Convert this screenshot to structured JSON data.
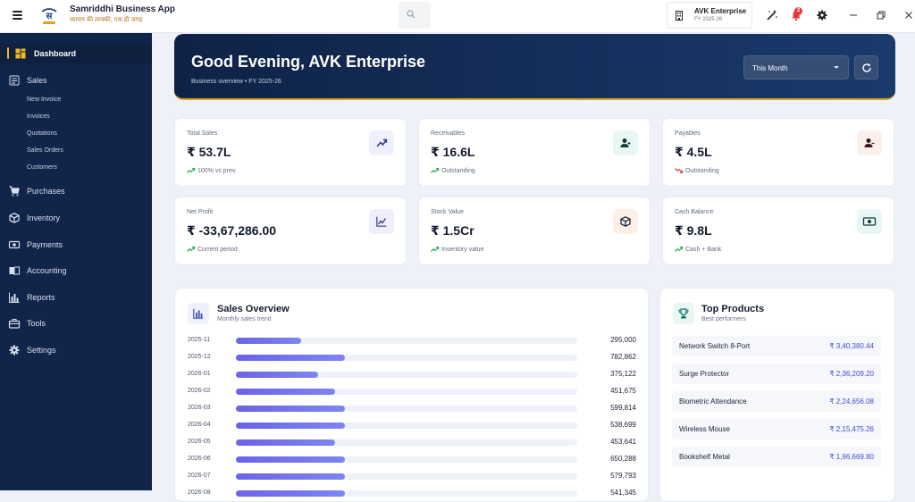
{
  "app": {
    "title": "Samriddhi Business App",
    "tagline": "व्यापार की तरक्की, एक ही जगह"
  },
  "company": {
    "name": "AVK Enterprise",
    "fy": "FY 2025-26"
  },
  "notifications": {
    "count": "2"
  },
  "sidebar": {
    "items": [
      {
        "label": "Dashboard",
        "icon": "dashboard-icon",
        "active": true
      },
      {
        "label": "Sales",
        "icon": "sales-icon"
      },
      {
        "label": "Purchases",
        "icon": "cart-icon"
      },
      {
        "label": "Inventory",
        "icon": "box-icon"
      },
      {
        "label": "Payments",
        "icon": "money-icon"
      },
      {
        "label": "Accounting",
        "icon": "book-icon"
      },
      {
        "label": "Reports",
        "icon": "bar-chart-icon"
      },
      {
        "label": "Tools",
        "icon": "toolbox-icon"
      },
      {
        "label": "Settings",
        "icon": "gear-icon"
      }
    ],
    "sales_sub": [
      "New Invoice",
      "Invoices",
      "Quotations",
      "Sales Orders",
      "Customers"
    ]
  },
  "hero": {
    "greeting": "Good Evening, AVK Enterprise",
    "overview": "Business overview • FY 2025-26",
    "period": "This Month"
  },
  "stats": [
    {
      "label": "Total Sales",
      "value": "₹ 53.7L",
      "sub": "100% vs prev.",
      "trend": "up",
      "icon_color": "#3f51b5",
      "icon_bg": "#eef0fb"
    },
    {
      "label": "Receivables",
      "value": "₹ 16.6L",
      "sub": "Outstanding",
      "trend": "up",
      "icon_color": "#0f766e",
      "icon_bg": "#e9f7f4"
    },
    {
      "label": "Payables",
      "value": "₹ 4.5L",
      "sub": "Outstanding",
      "trend": "down",
      "icon_color": "#b91c1c",
      "icon_bg": "#fdeeee"
    },
    {
      "label": "Net Profit",
      "value": "₹ -33,67,286.00",
      "sub": "Current period",
      "trend": "up",
      "icon_color": "#4f46e5",
      "icon_bg": "#efeefc"
    },
    {
      "label": "Stock Value",
      "value": "₹ 1.5Cr",
      "sub": "Inventory value",
      "trend": "up",
      "icon_color": "#1e293b",
      "icon_bg": "#fdf1e7"
    },
    {
      "label": "Cash Balance",
      "value": "₹ 9.8L",
      "sub": "Cash + Bank",
      "trend": "up",
      "icon_color": "#0f766e",
      "icon_bg": "#e9f6f6"
    }
  ],
  "sales_overview": {
    "title": "Sales Overview",
    "subtitle": "Monthly sales trend",
    "rows": [
      {
        "month": "2025-11",
        "value": "295,000",
        "fill": 0.19
      },
      {
        "month": "2025-12",
        "value": "782,862",
        "fill": 0.32
      },
      {
        "month": "2026-01",
        "value": "375,122",
        "fill": 0.24
      },
      {
        "month": "2026-02",
        "value": "451,675",
        "fill": 0.29
      },
      {
        "month": "2026-03",
        "value": "599,814",
        "fill": 0.32
      },
      {
        "month": "2026-04",
        "value": "538,699",
        "fill": 0.32
      },
      {
        "month": "2026-05",
        "value": "453,641",
        "fill": 0.29
      },
      {
        "month": "2026-06",
        "value": "650,288",
        "fill": 0.32
      },
      {
        "month": "2026-07",
        "value": "579,793",
        "fill": 0.32
      },
      {
        "month": "2026-08",
        "value": "541,345",
        "fill": 0.32
      }
    ]
  },
  "top_products": {
    "title": "Top Products",
    "subtitle": "Best performers",
    "items": [
      {
        "name": "Network Switch 8-Port",
        "value": "₹ 3,40,380.44"
      },
      {
        "name": "Surge Protector",
        "value": "₹ 2,36,209.20"
      },
      {
        "name": "Biometric Attendance",
        "value": "₹ 2,24,656.08"
      },
      {
        "name": "Wireless Mouse",
        "value": "₹ 2,15,475.26"
      },
      {
        "name": "Bookshelf Metal",
        "value": "₹ 1,96,669.80"
      }
    ]
  }
}
